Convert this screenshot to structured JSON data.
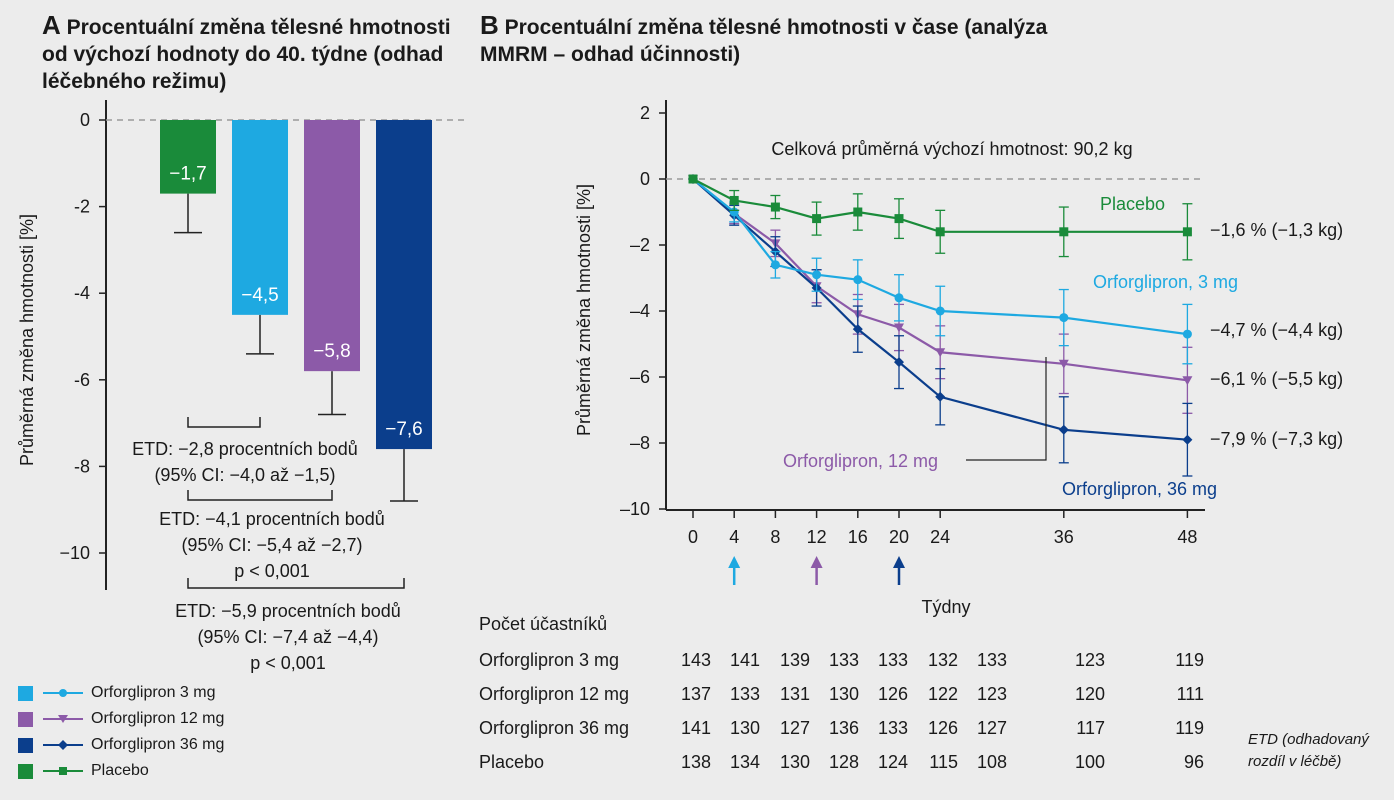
{
  "panel_a": {
    "letter": "A",
    "title": "Procentuální změna tělesné hmotnosti od výchozí hodnoty do 40. týdne (odhad léčebného režimu)"
  },
  "panel_b": {
    "letter": "B",
    "title": "Procentuální změna tělesné hmotnosti v čase (analýza MMRM – odhad účinnosti)"
  },
  "chart_data": [
    {
      "type": "bar",
      "title": "Procentuální změna tělesné hmotnosti od výchozí hodnoty do 40. týdne (odhad léčebného režimu)",
      "ylabel": "Průměrná změna hmotnosti  [%]",
      "ylim": [
        -10,
        0
      ],
      "yticks": [
        0,
        -2,
        -4,
        -6,
        -8,
        -10
      ],
      "ytick_labels": [
        "0",
        "-2",
        "-4",
        "-6",
        "-8",
        "−10"
      ],
      "categories": [
        "Placebo",
        "Orforglipron 3 mg",
        "Orforglipron 12 mg",
        "Orforglipron 36 mg"
      ],
      "values": [
        -1.7,
        -4.5,
        -5.8,
        -7.6
      ],
      "value_labels": [
        "−1,7",
        "−4,5",
        "−5,8",
        "−7,6"
      ],
      "error_low": [
        -2.6,
        -5.4,
        -6.8,
        -8.8
      ],
      "colors": [
        "#1a8b3a",
        "#1ea9e1",
        "#8c5aa8",
        "#0b3e8c"
      ],
      "annotations": [
        {
          "lines": [
            "ETD: −2,8 procentních bodů",
            "(95% CI: −4,0 až −1,5)"
          ]
        },
        {
          "lines": [
            "ETD: −4,1 procentních bodů",
            "(95% CI: −5,4 až −2,7)",
            "p < 0,001"
          ]
        },
        {
          "lines": [
            "ETD: −5,9 procentních bodů",
            "(95% CI: −7,4 až −4,4)",
            "p < 0,001"
          ]
        }
      ]
    },
    {
      "type": "line",
      "title": "Procentuální změna tělesné hmotnosti v čase (analýza MMRM – odhad účinnosti)",
      "xlabel": "Týdny",
      "ylabel": "Průměrná změna hmotnosti  [%]",
      "x": [
        0,
        4,
        8,
        12,
        16,
        20,
        24,
        36,
        48
      ],
      "xlim": [
        0,
        48
      ],
      "ylim": [
        -10,
        2
      ],
      "yticks": [
        2,
        0,
        -2,
        -4,
        -6,
        -8,
        -10
      ],
      "ytick_labels": [
        "2",
        "0",
        "–2",
        "–4",
        "–6",
        "–8",
        "–10"
      ],
      "annotation": "Celková průměrná výchozí hmotnost: 90,2 kg",
      "dose_arrows_weeks": [
        4,
        12,
        20
      ],
      "series": [
        {
          "name": "Placebo",
          "color": "#1a8b3a",
          "marker": "square",
          "values": [
            0,
            -0.65,
            -0.85,
            -1.2,
            -1.0,
            -1.2,
            -1.6,
            -1.6,
            -1.6
          ],
          "err": [
            0,
            0.3,
            0.35,
            0.5,
            0.55,
            0.6,
            0.65,
            0.75,
            0.85
          ],
          "end_label": "−1,6 % (−1,3 kg)"
        },
        {
          "name": "Orforglipron, 3 mg",
          "color": "#1ea9e1",
          "marker": "circle",
          "values": [
            0,
            -1.0,
            -2.6,
            -2.9,
            -3.05,
            -3.6,
            -4.0,
            -4.2,
            -4.7
          ],
          "err": [
            0,
            0.3,
            0.4,
            0.5,
            0.6,
            0.7,
            0.75,
            0.85,
            0.9
          ],
          "end_label": "−4,7 % (−4,4 kg)"
        },
        {
          "name": "Orforglipron, 12 mg",
          "color": "#8c5aa8",
          "marker": "triangle",
          "values": [
            0,
            -1.05,
            -1.95,
            -3.25,
            -4.1,
            -4.5,
            -5.25,
            -5.6,
            -6.1
          ],
          "err": [
            0,
            0.3,
            0.4,
            0.5,
            0.6,
            0.7,
            0.8,
            0.9,
            1.0
          ],
          "end_label": "−6,1 % (−5,5 kg)"
        },
        {
          "name": "Orforglipron, 36 mg",
          "color": "#0b3e8c",
          "marker": "diamond",
          "values": [
            0,
            -1.1,
            -2.2,
            -3.3,
            -4.55,
            -5.55,
            -6.6,
            -7.6,
            -7.9
          ],
          "err": [
            0,
            0.3,
            0.45,
            0.55,
            0.7,
            0.8,
            0.85,
            1.0,
            1.1
          ],
          "end_label": "−7,9 % (−7,3 kg)"
        }
      ]
    }
  ],
  "legend": {
    "items": [
      {
        "label": "Orforglipron 3 mg",
        "color": "#1ea9e1",
        "marker": "circle"
      },
      {
        "label": "Orforglipron 12 mg",
        "color": "#8c5aa8",
        "marker": "triangle"
      },
      {
        "label": "Orforglipron 36 mg",
        "color": "#0b3e8c",
        "marker": "diamond"
      },
      {
        "label": "Placebo",
        "color": "#1a8b3a",
        "marker": "square"
      }
    ]
  },
  "participants": {
    "header": "Počet účastníků",
    "weeks": [
      0,
      4,
      8,
      12,
      16,
      20,
      24,
      36,
      48
    ],
    "rows": [
      {
        "label": "Orforglipron 3 mg",
        "counts": [
          "143",
          "141",
          "139",
          "133",
          "133",
          "132",
          "133",
          "123",
          "119"
        ]
      },
      {
        "label": "Orforglipron 12 mg",
        "counts": [
          "137",
          "133",
          "131",
          "130",
          "126",
          "122",
          "123",
          "120",
          "111"
        ]
      },
      {
        "label": "Orforglipron 36 mg",
        "counts": [
          "141",
          "130",
          "127",
          "136",
          "133",
          "126",
          "127",
          "117",
          "119"
        ]
      },
      {
        "label": "Placebo",
        "counts": [
          "138",
          "134",
          "130",
          "128",
          "124",
          "115",
          "108",
          "100",
          "96"
        ]
      }
    ]
  },
  "footnote": [
    "ETD (odhadovaný",
    "rozdíl v léčbě)"
  ]
}
